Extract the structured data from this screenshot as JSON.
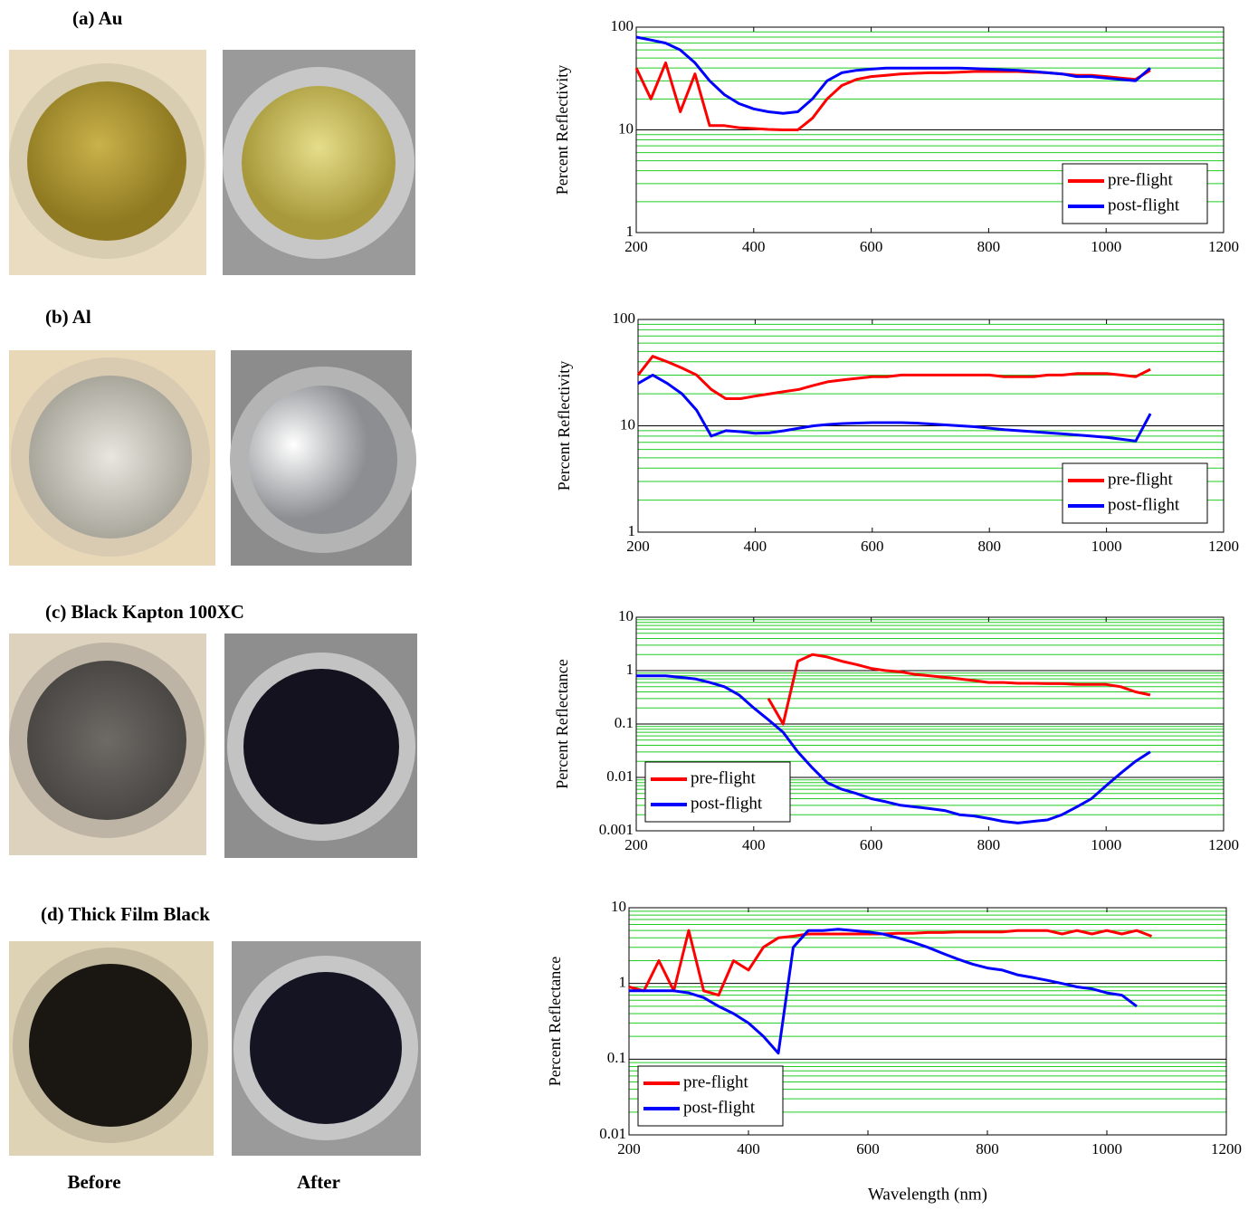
{
  "photo_labels": [
    "Before",
    "After"
  ],
  "chart_data": [
    {
      "type": "line",
      "title": "(a)  Au",
      "ylabel": "Percent Reflectivity",
      "log_y": true,
      "grid": true,
      "minor_grid": true,
      "legend": "lower right",
      "xlim": [
        200,
        1200
      ],
      "xticks": [
        200,
        400,
        600,
        800,
        1000,
        1200
      ],
      "ylim": [
        1,
        100
      ],
      "yticks": [
        1,
        10,
        100
      ],
      "x": [
        200,
        225,
        250,
        275,
        300,
        325,
        350,
        375,
        400,
        425,
        450,
        475,
        500,
        525,
        550,
        575,
        600,
        625,
        650,
        675,
        700,
        725,
        750,
        775,
        800,
        825,
        850,
        875,
        900,
        925,
        950,
        975,
        1000,
        1025,
        1050,
        1075
      ],
      "series": [
        {
          "name": "pre-flight",
          "color": "#ff0000",
          "values": [
            40,
            20,
            45,
            15,
            35,
            11,
            11,
            10.5,
            10.3,
            10.1,
            10,
            10,
            13,
            20,
            27,
            31,
            33,
            34,
            35,
            35.5,
            36,
            36,
            36.5,
            37,
            37,
            37,
            37,
            36.5,
            36,
            35,
            34,
            34,
            33,
            32,
            31,
            38
          ]
        },
        {
          "name": "post-flight",
          "color": "#0000ff",
          "values": [
            80,
            75,
            70,
            60,
            45,
            30,
            22,
            18,
            16,
            15,
            14.5,
            15,
            20,
            30,
            36,
            38,
            39,
            40,
            40,
            40,
            40,
            40,
            40,
            39.5,
            39,
            38.5,
            38,
            37,
            36,
            35,
            33,
            33,
            32,
            31,
            30,
            40
          ]
        }
      ]
    },
    {
      "type": "line",
      "title": "(b)  Al",
      "ylabel": "Percent Reflectivity",
      "log_y": true,
      "grid": true,
      "minor_grid": true,
      "legend": "lower right",
      "xlim": [
        200,
        1200
      ],
      "xticks": [
        200,
        400,
        600,
        800,
        1000,
        1200
      ],
      "ylim": [
        1,
        100
      ],
      "yticks": [
        1,
        10,
        100
      ],
      "x": [
        200,
        225,
        250,
        275,
        300,
        325,
        350,
        375,
        400,
        425,
        450,
        475,
        500,
        525,
        550,
        575,
        600,
        625,
        650,
        675,
        700,
        725,
        750,
        775,
        800,
        825,
        850,
        875,
        900,
        925,
        950,
        975,
        1000,
        1025,
        1050,
        1075
      ],
      "series": [
        {
          "name": "pre-flight",
          "color": "#ff0000",
          "values": [
            30,
            45,
            40,
            35,
            30,
            22,
            18,
            18,
            19,
            20,
            21,
            22,
            24,
            26,
            27,
            28,
            29,
            29,
            30,
            30,
            30,
            30,
            30,
            30,
            30,
            29,
            29,
            29,
            30,
            30,
            31,
            31,
            31,
            30,
            29,
            34
          ]
        },
        {
          "name": "post-flight",
          "color": "#0000ff",
          "values": [
            25,
            30,
            25,
            20,
            14,
            8,
            9,
            8.8,
            8.5,
            8.6,
            9,
            9.5,
            10,
            10.3,
            10.5,
            10.6,
            10.7,
            10.7,
            10.7,
            10.6,
            10.4,
            10.2,
            10,
            9.8,
            9.5,
            9.2,
            9,
            8.8,
            8.6,
            8.4,
            8.2,
            8,
            7.8,
            7.5,
            7.2,
            13
          ]
        }
      ]
    },
    {
      "type": "line",
      "title": "(c)  Black Kapton 100XC",
      "ylabel": "Percent Reflectance",
      "log_y": true,
      "grid": true,
      "minor_grid": true,
      "legend": "lower left",
      "xlim": [
        200,
        1200
      ],
      "xticks": [
        200,
        400,
        600,
        800,
        1000,
        1200
      ],
      "ylim": [
        0.001,
        10
      ],
      "yticks": [
        0.001,
        0.01,
        0.1,
        1,
        10
      ],
      "x": [
        200,
        225,
        250,
        275,
        300,
        325,
        350,
        375,
        400,
        425,
        450,
        475,
        500,
        525,
        550,
        575,
        600,
        625,
        650,
        675,
        700,
        725,
        750,
        775,
        800,
        825,
        850,
        875,
        900,
        925,
        950,
        975,
        1000,
        1025,
        1050,
        1075
      ],
      "series": [
        {
          "name": "pre-flight",
          "color": "#ff0000",
          "values": [
            null,
            null,
            null,
            null,
            null,
            null,
            null,
            null,
            null,
            0.3,
            0.1,
            1.5,
            2,
            1.8,
            1.5,
            1.3,
            1.1,
            1,
            0.95,
            0.85,
            0.8,
            0.75,
            0.7,
            0.65,
            0.6,
            0.6,
            0.58,
            0.58,
            0.57,
            0.57,
            0.55,
            0.55,
            0.55,
            0.5,
            0.4,
            0.35
          ]
        },
        {
          "name": "post-flight",
          "color": "#0000ff",
          "values": [
            0.8,
            0.8,
            0.8,
            0.75,
            0.7,
            0.6,
            0.5,
            0.35,
            0.2,
            0.12,
            0.07,
            0.03,
            0.015,
            0.008,
            0.006,
            0.005,
            0.004,
            0.0035,
            0.003,
            0.0028,
            0.0026,
            0.0024,
            0.002,
            0.0019,
            0.0017,
            0.0015,
            0.0014,
            0.0015,
            0.0016,
            0.002,
            0.0028,
            0.004,
            0.007,
            0.012,
            0.02,
            0.03
          ]
        }
      ]
    },
    {
      "type": "line",
      "title": "(d)  Thick Film Black",
      "ylabel": "Percent Reflectance",
      "xlabel": "Wavelength (nm)",
      "log_y": true,
      "grid": true,
      "minor_grid": true,
      "legend": "lower left",
      "xlim": [
        200,
        1200
      ],
      "xticks": [
        200,
        400,
        600,
        800,
        1000,
        1200
      ],
      "ylim": [
        0.01,
        10
      ],
      "yticks": [
        0.01,
        0.1,
        1,
        10
      ],
      "x": [
        200,
        225,
        250,
        275,
        300,
        325,
        350,
        375,
        400,
        425,
        450,
        475,
        500,
        525,
        550,
        575,
        600,
        625,
        650,
        675,
        700,
        725,
        750,
        775,
        800,
        825,
        850,
        875,
        900,
        925,
        950,
        975,
        1000,
        1025,
        1050,
        1075
      ],
      "series": [
        {
          "name": "pre-flight",
          "color": "#ff0000",
          "values": [
            0.9,
            0.8,
            2,
            0.8,
            5,
            0.8,
            0.7,
            2,
            1.5,
            3,
            4,
            4.2,
            4.5,
            4.5,
            4.5,
            4.5,
            4.5,
            4.5,
            4.6,
            4.6,
            4.7,
            4.7,
            4.8,
            4.8,
            4.8,
            4.8,
            5,
            5,
            5,
            4.5,
            5,
            4.5,
            5,
            4.5,
            5,
            4.2
          ]
        },
        {
          "name": "post-flight",
          "color": "#0000ff",
          "values": [
            0.8,
            0.8,
            0.8,
            0.8,
            0.75,
            0.65,
            0.5,
            0.4,
            0.3,
            0.2,
            0.12,
            3,
            5,
            5,
            5.2,
            5,
            4.8,
            4.5,
            4,
            3.5,
            3,
            2.5,
            2.1,
            1.8,
            1.6,
            1.5,
            1.3,
            1.2,
            1.1,
            1,
            0.9,
            0.85,
            0.75,
            0.7,
            0.5,
            null
          ]
        }
      ]
    }
  ]
}
